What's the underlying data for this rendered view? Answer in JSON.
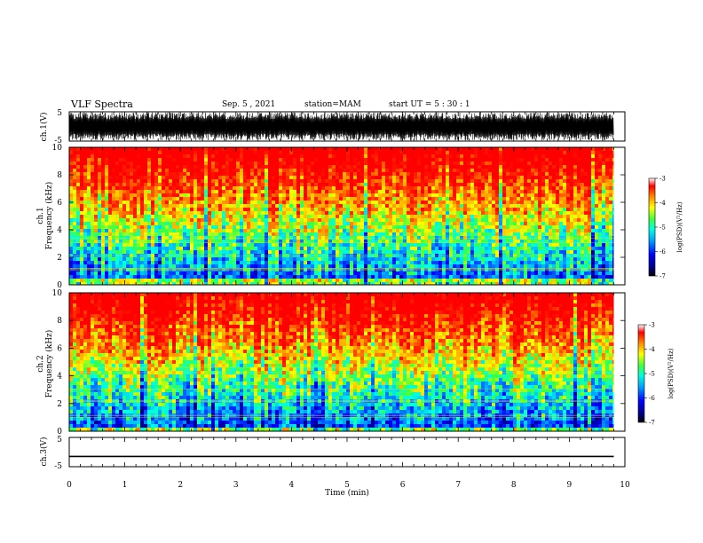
{
  "header": {
    "title": "VLF Spectra",
    "date": "Sep. 5 , 2021",
    "station": "station=MAM",
    "start": "start  UT  =   5  : 30 : 1"
  },
  "chart_data": [
    {
      "type": "line",
      "panel": "ch1-waveform",
      "ylabel": "ch.1(V)",
      "ylim": [
        -5,
        5
      ],
      "y_ticks": [
        "5",
        "-5"
      ],
      "x_range": [
        0,
        10
      ],
      "description_values": {
        "approx_amplitude_range": [
          -5,
          5
        ]
      }
    },
    {
      "type": "heatmap",
      "panel": "ch1-spectrogram",
      "ylabel_line1": "ch.1",
      "ylabel_line2": "Frequency (kHz)",
      "ylim": [
        0,
        10
      ],
      "y_ticks": [
        "0",
        "2",
        "4",
        "6",
        "8",
        "10"
      ],
      "x_range": [
        0,
        10
      ],
      "colorbar": {
        "label": "log(PSD)(V²/Hz)",
        "ticks": [
          "-3",
          "-4",
          "-5",
          "-6",
          "-7"
        ],
        "range": [
          -7,
          -3
        ]
      }
    },
    {
      "type": "heatmap",
      "panel": "ch2-spectrogram",
      "ylabel_line1": "ch.2",
      "ylabel_line2": "Frequency (kHz)",
      "ylim": [
        0,
        10
      ],
      "y_ticks": [
        "0",
        "2",
        "4",
        "6",
        "8",
        "10"
      ],
      "x_range": [
        0,
        10
      ],
      "colorbar": {
        "label": "log(PSD)(V²/Hz)",
        "ticks": [
          "-3",
          "-4",
          "-5",
          "-6",
          "-7"
        ],
        "range": [
          -7,
          -3
        ]
      }
    },
    {
      "type": "line",
      "panel": "ch3-waveform",
      "ylabel": "ch.3(V)",
      "ylim": [
        -5,
        5
      ],
      "y_ticks": [
        "5",
        "-5"
      ],
      "x": [
        0,
        9.8
      ],
      "values": [
        -1.5,
        -1.5
      ],
      "xlabel": "Time (min)",
      "x_ticks": [
        "0",
        "1",
        "2",
        "3",
        "4",
        "5",
        "6",
        "7",
        "8",
        "9",
        "10"
      ],
      "x_range": [
        0,
        10
      ]
    }
  ]
}
